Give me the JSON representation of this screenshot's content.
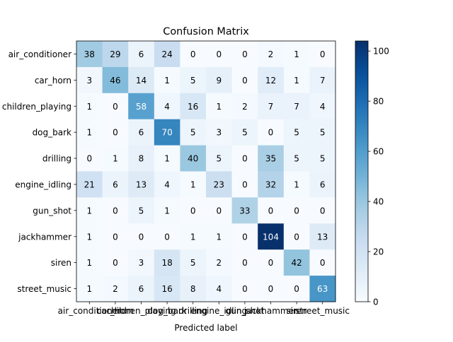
{
  "chart_data": {
    "type": "heatmap",
    "title": "Confusion Matrix",
    "xlabel": "Predicted label",
    "ylabel": "",
    "row_labels": [
      "air_conditioner",
      "car_horn",
      "children_playing",
      "dog_bark",
      "drilling",
      "engine_idling",
      "gun_shot",
      "jackhammer",
      "siren",
      "street_music"
    ],
    "col_labels": [
      "air_conditioner",
      "car_horn",
      "children_playing",
      "dog_bark",
      "drilling",
      "engine_idling",
      "gun_shot",
      "jackhammer",
      "siren",
      "street_music"
    ],
    "values": [
      [
        38,
        29,
        6,
        24,
        0,
        0,
        0,
        2,
        1,
        0
      ],
      [
        3,
        46,
        14,
        1,
        5,
        9,
        0,
        12,
        1,
        7
      ],
      [
        1,
        0,
        58,
        4,
        16,
        1,
        2,
        7,
        7,
        4
      ],
      [
        1,
        0,
        6,
        70,
        5,
        3,
        5,
        0,
        5,
        5
      ],
      [
        0,
        1,
        8,
        1,
        40,
        5,
        0,
        35,
        5,
        5
      ],
      [
        21,
        6,
        13,
        4,
        1,
        23,
        0,
        32,
        1,
        6
      ],
      [
        1,
        0,
        5,
        1,
        0,
        0,
        33,
        0,
        0,
        0
      ],
      [
        1,
        0,
        0,
        0,
        1,
        1,
        0,
        104,
        0,
        13
      ],
      [
        1,
        0,
        3,
        18,
        5,
        2,
        0,
        0,
        42,
        0
      ],
      [
        1,
        2,
        6,
        16,
        8,
        4,
        0,
        0,
        0,
        63
      ]
    ],
    "colormap": "Blues",
    "vmin": 0,
    "vmax": 104,
    "colorbar_ticks": [
      0,
      20,
      40,
      60,
      80,
      100
    ],
    "text_color_dark": "#000000",
    "text_color_light": "#ffffff"
  }
}
